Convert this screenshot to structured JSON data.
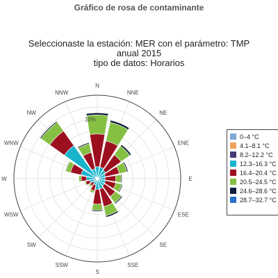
{
  "page": {
    "title": "Gráfico de rosa de contaminante"
  },
  "chart_data": {
    "type": "barpolar",
    "title_lines": [
      "Seleccionaste la estación: MER con el parámetro: TMP",
      "anual 2015",
      "tipo de datos: Horarios"
    ],
    "directions": [
      "N",
      "NNE",
      "NE",
      "ENE",
      "E",
      "ESE",
      "SE",
      "SSE",
      "S",
      "SSW",
      "SW",
      "WSW",
      "W",
      "WNW",
      "NW",
      "NNW"
    ],
    "radial_tick_label": "10%",
    "radial_range": [
      0,
      14
    ],
    "series": [
      {
        "name": "0–4 °C",
        "color": "#7fa7d6",
        "values": [
          0,
          0,
          0,
          0,
          0,
          0,
          0,
          0,
          0,
          0,
          0,
          0,
          0,
          0,
          0,
          0
        ]
      },
      {
        "name": "4.1–8.1 °C",
        "color": "#f0a15c",
        "values": [
          0,
          0,
          0,
          0,
          0,
          0,
          0,
          0,
          0,
          0,
          0,
          0.1,
          0.1,
          0,
          0,
          0
        ]
      },
      {
        "name": "8.2–12.2 °C",
        "color": "#4b3a7a",
        "values": [
          0.2,
          0.2,
          0.2,
          0.2,
          0.2,
          0.2,
          0.2,
          0.2,
          0.2,
          0.2,
          0.2,
          0.4,
          0.5,
          0.3,
          0.3,
          0.2
        ]
      },
      {
        "name": "12.3–16.3 °C",
        "color": "#17b4cc",
        "values": [
          1.8,
          1.8,
          1.5,
          1.2,
          1.1,
          1.2,
          1.3,
          1.6,
          1.6,
          0.9,
          0.6,
          0.8,
          1.2,
          2.5,
          6.5,
          1.5
        ]
      },
      {
        "name": "16.4–20.4 °C",
        "color": "#9c0f1f",
        "values": [
          5.5,
          4.5,
          3.2,
          2.4,
          1.8,
          1.8,
          2.2,
          3.0,
          2.5,
          1.0,
          0.7,
          0.7,
          0.9,
          1.8,
          3.0,
          2.8
        ]
      },
      {
        "name": "20.5–24.5 °C",
        "color": "#86c043",
        "values": [
          3.2,
          3.2,
          1.8,
          1.3,
          0.9,
          1.0,
          1.3,
          1.6,
          1.0,
          0.4,
          0.3,
          0.2,
          0.4,
          0.8,
          1.8,
          1.5
        ]
      },
      {
        "name": "24.6–28.6 °C",
        "color": "#0d1e3a",
        "values": [
          0.35,
          0.35,
          0.3,
          0.2,
          0.15,
          0.15,
          0.2,
          0.25,
          0.2,
          0.05,
          0.05,
          0.05,
          0.05,
          0.1,
          0.2,
          0.2
        ]
      },
      {
        "name": "28.7–32.7 °C",
        "color": "#2a72c9",
        "values": [
          0,
          0,
          0,
          0,
          0,
          0,
          0,
          0,
          0,
          0,
          0,
          0,
          0,
          0,
          0,
          0
        ]
      }
    ],
    "legend_position": "right",
    "grid": true
  }
}
